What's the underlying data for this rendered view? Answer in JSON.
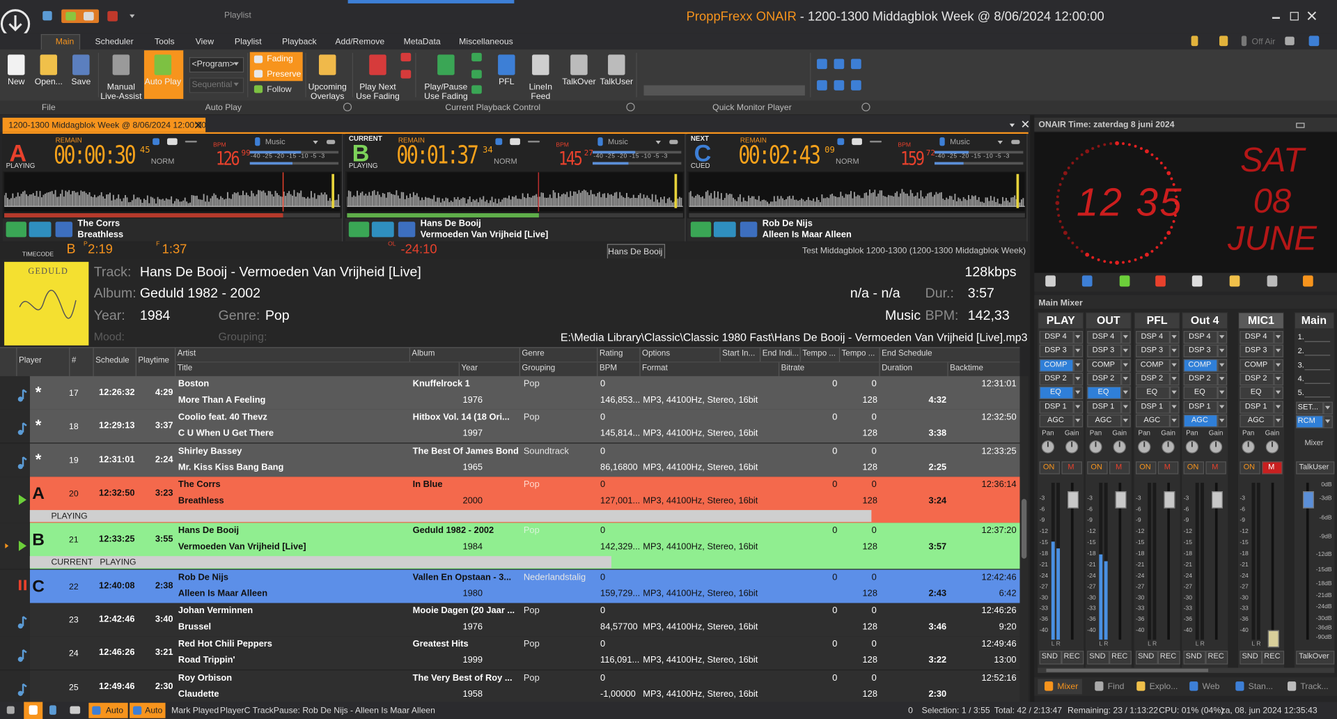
{
  "window": {
    "context_tab": "Playlist",
    "app_name": "ProppFrexx ONAIR",
    "title": "- 1200-1300 Middagblok Week @ 8/06/2024 12:00:00",
    "off_air": "Off Air"
  },
  "menu": [
    "Main",
    "Scheduler",
    "Tools",
    "View",
    "Playlist",
    "Playback",
    "Add/Remove",
    "MetaData",
    "Miscellaneous"
  ],
  "ribbon": {
    "buttons": [
      "New",
      "Open...",
      "Save",
      "Manual\nLive-Assist",
      "Auto Play",
      "Upcoming\nOverlays",
      "Play Next\nUse Fading",
      "Play/Pause\nUse Fading",
      "PFL",
      "LineIn\nFeed",
      "TalkOver",
      "TalkUser"
    ],
    "program": "<Program>",
    "sequential": "Sequential",
    "fading": "Fading",
    "preserve": "Preserve",
    "follow": "Follow",
    "groups": [
      "File",
      "Auto Play",
      "Current Playback Control",
      "Quick Monitor Player"
    ]
  },
  "playlist_tab": "1200-1300 Middagblok Week @ 8/06/2024 12:00:00",
  "players": [
    {
      "state_top": "",
      "letter": "A",
      "state": "PLAYING",
      "remain": "REMAIN",
      "time": "00:00:30",
      "time_frac": "45",
      "mode": "NORM",
      "bpm_label": "BPM",
      "bpm": "126",
      "bpm_frac": "99",
      "source": "Music",
      "meter_scale": "-40 -25 -20 -15 -10 -5 -3",
      "artist": "The Corrs",
      "title": "Breathless"
    },
    {
      "state_top": "CURRENT",
      "letter": "B",
      "state": "PLAYING",
      "remain": "REMAIN",
      "time": "00:01:37",
      "time_frac": "34",
      "mode": "NORM",
      "bpm_label": "BPM",
      "bpm": "145",
      "bpm_frac": "27",
      "source": "Music",
      "meter_scale": "-40 -25 -20 -15 -10 -5 -3",
      "artist": "Hans De Booij",
      "title": "Vermoeden Van Vrijheid [Live]"
    },
    {
      "state_top": "NEXT",
      "letter": "C",
      "state": "CUED",
      "remain": "REMAIN",
      "time": "00:02:43",
      "time_frac": "09",
      "mode": "NORM",
      "bpm_label": "BPM",
      "bpm": "159",
      "bpm_frac": "72",
      "source": "Music",
      "meter_scale": "-40 -25 -20 -15 -10 -5 -3",
      "artist": "Rob De Nijs",
      "title": "Alleen Is Maar Alleen"
    }
  ],
  "timecode": {
    "label": "TIMECODE",
    "player": "B",
    "p_label": "P",
    "p_time": "2:19",
    "f_label": "F",
    "f_time": "1:37",
    "ol_label": "OL",
    "ol_time": "-24:10",
    "tooltip": "Hans De Booij",
    "playlist_name": "Test Middagblok 1200-1300 (1200-1300 Middagblok Week)"
  },
  "track_info": {
    "album_art": "GEDULD",
    "track_label": "Track:",
    "track": "Hans De Booij - Vermoeden Van Vrijheid [Live]",
    "album_label": "Album:",
    "album": "Geduld 1982 - 2002",
    "year_label": "Year:",
    "year": "1984",
    "genre_label": "Genre:",
    "genre": "Pop",
    "mood_label": "Mood:",
    "grouping_label": "Grouping:",
    "bitrate": "128kbps",
    "key": "n/a - n/a",
    "dur_label": "Dur.:",
    "duration": "3:57",
    "category": "Music",
    "bpm_label": "BPM:",
    "bpm": "142,33",
    "path": "E:\\Media Library\\Classic\\Classic 1980 Fast\\Hans De Booij - Vermoeden Van Vrijheid [Live].mp3"
  },
  "table": {
    "header_top": [
      "Player",
      "#",
      "Schedule",
      "Playtime",
      "Artist",
      "Album",
      "Genre",
      "Rating",
      "Options",
      "Start In...",
      "End Indi...",
      "Tempo ...",
      "Tempo ...",
      "End Schedule"
    ],
    "header_bottom": [
      "Title",
      "Year",
      "Grouping",
      "BPM",
      "Format",
      "Bitrate",
      "Duration",
      "Backtime"
    ],
    "rows": [
      {
        "player": "*",
        "num": "17",
        "schedule": "12:26:32",
        "playtime": "4:29",
        "artist": "Boston",
        "title": "More Than A Feeling",
        "album": "Knuffelrock 1",
        "year": "1976",
        "genre": "Pop",
        "rating": "0",
        "bpm": "146,853...",
        "format": "MP3, 44100Hz, Stereo, 16bit",
        "tempo1": "0",
        "tempo2": "0",
        "bitrate": "128",
        "end_schedule": "12:31:01",
        "duration": "4:32"
      },
      {
        "player": "*",
        "num": "18",
        "schedule": "12:29:13",
        "playtime": "3:37",
        "artist": "Coolio feat. 40 Thevz",
        "title": "C U When U Get There",
        "album": "Hitbox Vol. 14 (18 Ori...",
        "year": "1997",
        "genre": "Pop",
        "rating": "0",
        "bpm": "145,814...",
        "format": "MP3, 44100Hz, Stereo, 16bit",
        "tempo1": "0",
        "tempo2": "0",
        "bitrate": "128",
        "end_schedule": "12:32:50",
        "duration": "3:38"
      },
      {
        "player": "*",
        "num": "19",
        "schedule": "12:31:01",
        "playtime": "2:24",
        "artist": "Shirley Bassey",
        "title": "Mr. Kiss Kiss Bang Bang",
        "album": "The Best Of James Bond",
        "year": "1965",
        "genre": "Soundtrack",
        "rating": "0",
        "bpm": "86,16800",
        "format": "MP3, 44100Hz, Stereo, 16bit",
        "tempo1": "0",
        "tempo2": "0",
        "bitrate": "128",
        "end_schedule": "12:33:25",
        "duration": "2:25"
      },
      {
        "player": "A",
        "num": "20",
        "schedule": "12:32:50",
        "playtime": "3:23",
        "artist": "The Corrs",
        "title": "Breathless",
        "album": "In Blue",
        "year": "2000",
        "genre": "Pop",
        "rating": "0",
        "bpm": "127,001...",
        "format": "MP3, 44100Hz, Stereo, 16bit",
        "tempo1": "0",
        "tempo2": "0",
        "bitrate": "128",
        "end_schedule": "12:36:14",
        "duration": "3:24",
        "status": "PLAYING"
      },
      {
        "player": "B",
        "num": "21",
        "schedule": "12:33:25",
        "playtime": "3:55",
        "artist": "Hans De Booij",
        "title": "Vermoeden Van Vrijheid [Live]",
        "album": "Geduld 1982 - 2002",
        "year": "1984",
        "genre": "Pop",
        "rating": "0",
        "bpm": "142,329...",
        "format": "MP3, 44100Hz, Stereo, 16bit",
        "tempo1": "0",
        "tempo2": "0",
        "bitrate": "128",
        "end_schedule": "12:37:20",
        "duration": "3:57",
        "status": "CURRENT   PLAYING"
      },
      {
        "player": "C",
        "num": "22",
        "schedule": "12:40:08",
        "playtime": "2:38",
        "artist": "Rob De Nijs",
        "title": "Alleen Is Maar Alleen",
        "album": "Vallen En Opstaan - 3...",
        "year": "1980",
        "genre": "Nederlandstalig",
        "rating": "0",
        "bpm": "159,729...",
        "format": "MP3, 44100Hz, Stereo, 16bit",
        "tempo1": "0",
        "tempo2": "0",
        "bitrate": "128",
        "end_schedule": "12:42:46",
        "duration": "2:43",
        "backtime": "6:42"
      },
      {
        "player": "",
        "num": "23",
        "schedule": "12:42:46",
        "playtime": "3:40",
        "artist": "Johan Verminnen",
        "title": "Brussel",
        "album": "Mooie Dagen (20 Jaar ...",
        "year": "1976",
        "genre": "Pop",
        "rating": "0",
        "bpm": "84,57700",
        "format": "MP3, 44100Hz, Stereo, 16bit",
        "tempo1": "0",
        "tempo2": "0",
        "bitrate": "128",
        "end_schedule": "12:46:26",
        "duration": "3:46",
        "backtime": "9:20"
      },
      {
        "player": "",
        "num": "24",
        "schedule": "12:46:26",
        "playtime": "3:21",
        "artist": "Red Hot Chili Peppers",
        "title": "Road Trippin'",
        "album": "Greatest Hits",
        "year": "1999",
        "genre": "Pop",
        "rating": "0",
        "bpm": "116,091...",
        "format": "MP3, 44100Hz, Stereo, 16bit",
        "tempo1": "0",
        "tempo2": "0",
        "bitrate": "128",
        "end_schedule": "12:49:46",
        "duration": "3:22",
        "backtime": "13:00"
      },
      {
        "player": "",
        "num": "25",
        "schedule": "12:49:46",
        "playtime": "2:30",
        "artist": "Roy Orbison",
        "title": "Claudette",
        "album": "The Very Best of Roy ...",
        "year": "1958",
        "genre": "Pop",
        "rating": "0",
        "bpm": "-1,00000",
        "format": "MP3, 44100Hz, Stereo, 16bit",
        "tempo1": "0",
        "tempo2": "0",
        "bitrate": "128",
        "end_schedule": "12:52:16",
        "duration": "2:30"
      }
    ]
  },
  "clock": {
    "title": "ONAIR Time: zaterdag 8 juni 2024",
    "time": "12 35",
    "weekday": "SAT",
    "day": "08",
    "month": "JUNE"
  },
  "mixer": {
    "title": "Main Mixer",
    "channels": [
      {
        "name": "PLAY",
        "buttons": [
          "DSP 4",
          "DSP 3",
          "COMP",
          "DSP 2",
          "EQ",
          "DSP 1",
          "AGC"
        ],
        "pan": "Pan",
        "gain": "Gain",
        "on": "ON",
        "mute": "M",
        "lr": "L R",
        "snd": "SND",
        "rec": "REC"
      },
      {
        "name": "OUT",
        "buttons": [
          "DSP 4",
          "DSP 3",
          "COMP",
          "DSP 2",
          "EQ",
          "DSP 1",
          "AGC"
        ],
        "pan": "Pan",
        "gain": "Gain",
        "on": "ON",
        "mute": "M",
        "lr": "L R",
        "snd": "SND",
        "rec": "REC"
      },
      {
        "name": "PFL",
        "buttons": [
          "DSP 4",
          "DSP 3",
          "COMP",
          "DSP 2",
          "EQ",
          "DSP 1",
          "AGC"
        ],
        "pan": "Pan",
        "gain": "Gain",
        "on": "ON",
        "mute": "M",
        "lr": "L R",
        "snd": "SND",
        "rec": "REC"
      },
      {
        "name": "Out 4",
        "buttons": [
          "DSP 4",
          "DSP 3",
          "COMP",
          "DSP 2",
          "EQ",
          "DSP 1",
          "AGC"
        ],
        "pan": "Pan",
        "gain": "Gain",
        "on": "ON",
        "mute": "M",
        "lr": "L R",
        "snd": "SND",
        "rec": "REC"
      },
      {
        "name": "MIC1",
        "buttons": [
          "DSP 4",
          "DSP 3",
          "COMP",
          "DSP 2",
          "EQ",
          "DSP 1",
          "AGC"
        ],
        "pan": "Pan",
        "gain": "Gain",
        "on": "ON",
        "mute": "M",
        "lr": "L R",
        "snd": "SND",
        "rec": "REC"
      }
    ],
    "scale": [
      "-3",
      "-6",
      "-9",
      "-12",
      "-15",
      "-18",
      "-21",
      "-24",
      "-27",
      "-30",
      "-33",
      "-36",
      "-40"
    ],
    "main": {
      "name": "Main",
      "items": [
        "1.",
        "2.",
        "3.",
        "4.",
        "5.",
        "SET...",
        "RCM"
      ],
      "mixer": "Mixer",
      "talkuser": "TalkUser",
      "db": [
        "0dB",
        "-3dB",
        "-6dB",
        "-9dB",
        "-12dB",
        "-15dB",
        "-18dB",
        "-21dB",
        "-24dB",
        "-30dB",
        "-36dB",
        "-90dB"
      ],
      "talkover": "TalkOver"
    },
    "tabs": [
      "Mixer",
      "Find",
      "Explo...",
      "Web",
      "Stan...",
      "Track..."
    ]
  },
  "status_bar": {
    "auto1": "Auto",
    "auto2": "Auto",
    "mark_played": "Mark Played",
    "message": "PlayerC TrackPause: Rob De Nijs - Alleen Is Maar Alleen",
    "count": "0",
    "selection": "Selection: 1 / 3:55",
    "total": "Total: 42 / 2:13:47",
    "remaining": "Remaining: 23 / 1:13:22",
    "cpu": "CPU: 01% (04%)",
    "datetime": "za, 08. jun 2024 12:35:43"
  }
}
